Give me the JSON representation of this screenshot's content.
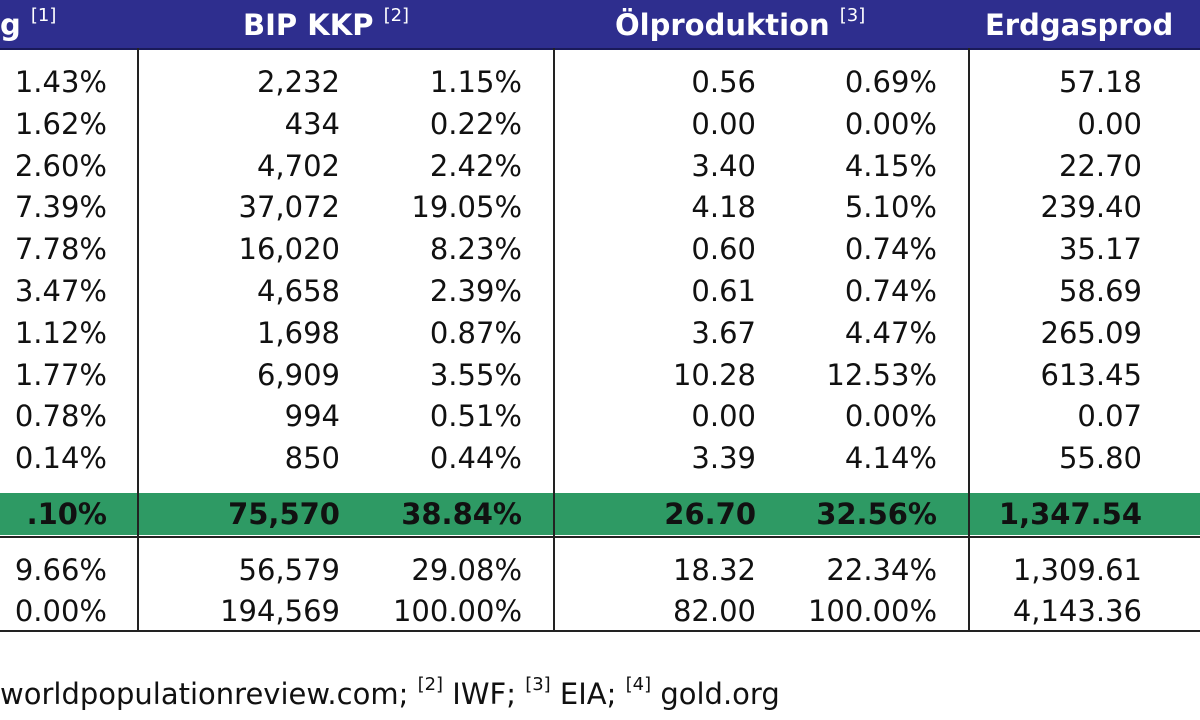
{
  "chart_data": {
    "type": "table",
    "columns": [
      {
        "label": "g",
        "note": "[1]"
      },
      {
        "label": "BIP KKP",
        "note": "[2]"
      },
      {
        "label": "Ölproduktion",
        "note": "[3]"
      },
      {
        "label": "Erdgasprod",
        "note": ""
      }
    ],
    "rows": [
      {
        "c1": "1.43%",
        "c2": "2,232",
        "c3": "1.15%",
        "c4": "0.56",
        "c5": "0.69%",
        "c6": "57.18"
      },
      {
        "c1": "1.62%",
        "c2": "434",
        "c3": "0.22%",
        "c4": "0.00",
        "c5": "0.00%",
        "c6": "0.00"
      },
      {
        "c1": "2.60%",
        "c2": "4,702",
        "c3": "2.42%",
        "c4": "3.40",
        "c5": "4.15%",
        "c6": "22.70"
      },
      {
        "c1": "7.39%",
        "c2": "37,072",
        "c3": "19.05%",
        "c4": "4.18",
        "c5": "5.10%",
        "c6": "239.40"
      },
      {
        "c1": "7.78%",
        "c2": "16,020",
        "c3": "8.23%",
        "c4": "0.60",
        "c5": "0.74%",
        "c6": "35.17"
      },
      {
        "c1": "3.47%",
        "c2": "4,658",
        "c3": "2.39%",
        "c4": "0.61",
        "c5": "0.74%",
        "c6": "58.69"
      },
      {
        "c1": "1.12%",
        "c2": "1,698",
        "c3": "0.87%",
        "c4": "3.67",
        "c5": "4.47%",
        "c6": "265.09"
      },
      {
        "c1": "1.77%",
        "c2": "6,909",
        "c3": "3.55%",
        "c4": "10.28",
        "c5": "12.53%",
        "c6": "613.45"
      },
      {
        "c1": "0.78%",
        "c2": "994",
        "c3": "0.51%",
        "c4": "0.00",
        "c5": "0.00%",
        "c6": "0.07"
      },
      {
        "c1": "0.14%",
        "c2": "850",
        "c3": "0.44%",
        "c4": "3.39",
        "c5": "4.14%",
        "c6": "55.80"
      }
    ],
    "total_row": {
      "c1": ".10%",
      "c2": "75,570",
      "c3": "38.84%",
      "c4": "26.70",
      "c5": "32.56%",
      "c6": "1,347.54"
    },
    "bottom_rows": [
      {
        "c1": "9.66%",
        "c2": "56,579",
        "c3": "29.08%",
        "c4": "18.32",
        "c5": "22.34%",
        "c6": "1,309.61"
      },
      {
        "c1": "0.00%",
        "c2": "194,569",
        "c3": "100.00%",
        "c4": "82.00",
        "c5": "100.00%",
        "c6": "4,143.36"
      }
    ],
    "footnote": [
      {
        "note": "",
        "text": "worldpopulationreview.com; "
      },
      {
        "note": "[2]",
        "text": " IWF; "
      },
      {
        "note": "[3]",
        "text": " EIA; "
      },
      {
        "note": "[4]",
        "text": " gold.org"
      }
    ]
  },
  "colors": {
    "header_bg": "#2e2e8e",
    "header_text": "#ffffff",
    "total_row_bg": "#2e9a64"
  }
}
